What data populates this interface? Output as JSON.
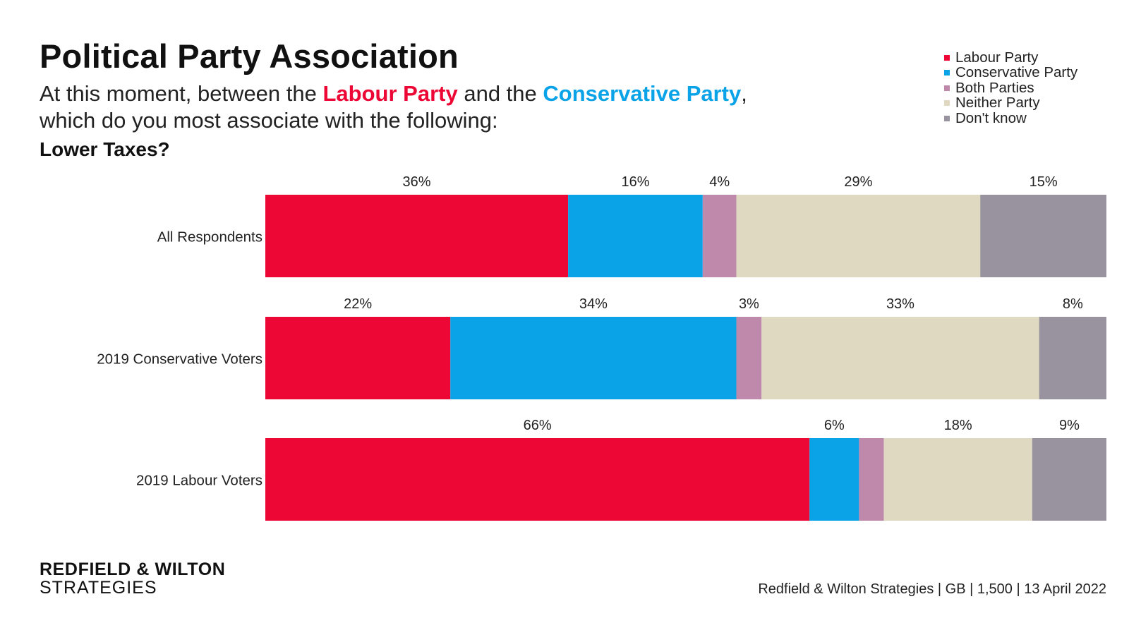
{
  "header": {
    "title": "Political Party Association",
    "subtitle_pre": "At this moment, between the ",
    "subtitle_lab": "Labour Party",
    "subtitle_mid": " and the ",
    "subtitle_con": "Conservative Party",
    "subtitle_post": ",",
    "subtitle_line2": "which do you most associate with the following:",
    "question": "Lower Taxes?"
  },
  "footer": {
    "logo_line1": "REDFIELD & WILTON",
    "logo_line2": "STRATEGIES",
    "source": "Redfield & Wilton Strategies | GB | 1,500 | 13 April 2022"
  },
  "chart_data": {
    "type": "bar",
    "orientation": "horizontal",
    "stacked": true,
    "categories": [
      "All Respondents",
      "2019 Conservative Voters",
      "2019 Labour Voters"
    ],
    "series": [
      {
        "name": "Labour Party",
        "color": "#EC0734",
        "values": [
          36,
          22,
          66
        ],
        "labels": [
          "36%",
          "22%",
          "66%"
        ]
      },
      {
        "name": "Conservative Party",
        "color": "#0AA3E8",
        "values": [
          16,
          34,
          6
        ],
        "labels": [
          "16%",
          "34%",
          "6%"
        ]
      },
      {
        "name": "Both Parties",
        "color": "#BE89AB",
        "values": [
          4,
          3,
          3
        ],
        "labels": [
          "4%",
          "3%",
          ""
        ]
      },
      {
        "name": "Neither Party",
        "color": "#DFD9C1",
        "values": [
          29,
          33,
          18
        ],
        "labels": [
          "29%",
          "33%",
          "18%"
        ]
      },
      {
        "name": "Don't know",
        "color": "#98939E",
        "values": [
          15,
          8,
          9
        ],
        "labels": [
          "15%",
          "8%",
          "9%"
        ]
      }
    ],
    "legend_position": "top-right",
    "grid": false
  }
}
